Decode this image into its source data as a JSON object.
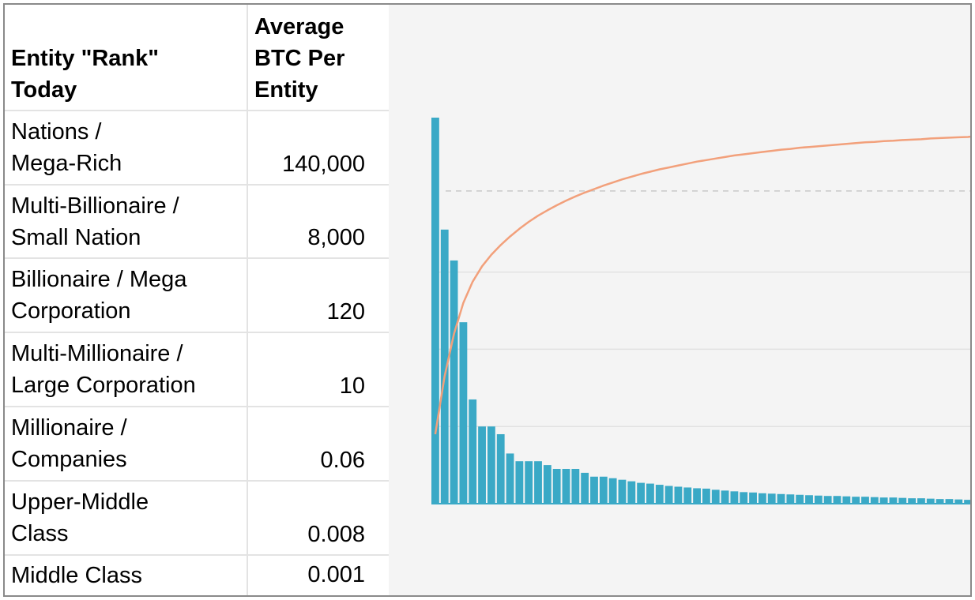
{
  "table": {
    "headers": [
      "Entity \"Rank\"\nToday",
      "Average\nBTC Per\nEntity"
    ],
    "rows": [
      {
        "rank": "Nations /\nMega-Rich",
        "btc": "140,000"
      },
      {
        "rank": "Multi-Billionaire /\nSmall Nation",
        "btc": "8,000"
      },
      {
        "rank": "Billionaire / Mega\nCorporation",
        "btc": "120"
      },
      {
        "rank": "Multi-Millionaire /\nLarge Corporation",
        "btc": "10"
      },
      {
        "rank": "Millionaire /\nCompanies",
        "btc": "0.06"
      },
      {
        "rank": "Upper-Middle\nClass",
        "btc": "0.008"
      },
      {
        "rank": "Middle Class",
        "btc": "0.001"
      }
    ]
  },
  "colors": {
    "bar": "#3aa9c6",
    "curve": "#f2a07b",
    "grid": "#e2e2e2",
    "dashed": "#c8c8c8",
    "background": "#f4f4f4"
  },
  "chart_data": {
    "type": "bar",
    "title": "",
    "xlabel": "",
    "ylabel": "",
    "ylim": [
      0,
      100
    ],
    "gridlines": [
      20,
      40,
      60
    ],
    "dashed_line": 81,
    "series": [
      {
        "type": "bar",
        "values": [
          100,
          71,
          63,
          47,
          27,
          20,
          20,
          18,
          13,
          11,
          11,
          11,
          10,
          9,
          9,
          9,
          8,
          7,
          7,
          6.6,
          6.2,
          5.8,
          5.4,
          5.2,
          4.9,
          4.6,
          4.4,
          4.2,
          4.0,
          3.9,
          3.6,
          3.4,
          3.2,
          3.0,
          2.9,
          2.7,
          2.6,
          2.5,
          2.4,
          2.3,
          2.2,
          2.1,
          2.0,
          2.0,
          1.9,
          1.8,
          1.8,
          1.7,
          1.6,
          1.6,
          1.5,
          1.4,
          1.4,
          1.3,
          1.2,
          1.2,
          1.1,
          1.0
        ]
      },
      {
        "type": "line",
        "values": [
          18,
          33,
          44,
          52,
          57.5,
          61.5,
          64.5,
          67,
          69.2,
          71.2,
          73,
          74.6,
          76,
          77.3,
          78.5,
          79.6,
          80.6,
          81.5,
          82.4,
          83.2,
          84.0,
          84.7,
          85.4,
          86.0,
          86.6,
          87.1,
          87.6,
          88.1,
          88.6,
          89.0,
          89.4,
          89.8,
          90.2,
          90.5,
          90.8,
          91.1,
          91.4,
          91.7,
          91.9,
          92.2,
          92.4,
          92.6,
          92.8,
          93.0,
          93.2,
          93.4,
          93.6,
          93.7,
          93.9,
          94.0,
          94.2,
          94.3,
          94.4,
          94.6,
          94.7,
          94.8,
          94.9,
          95.0
        ]
      }
    ]
  }
}
